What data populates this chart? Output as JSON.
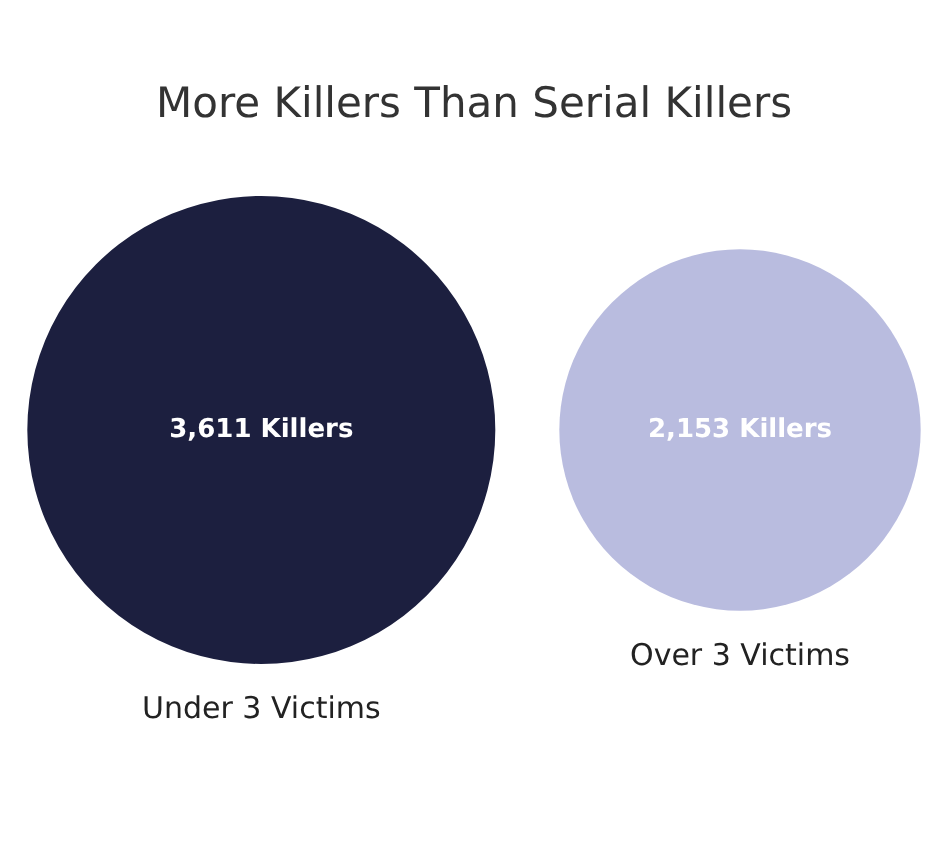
{
  "chart_data": {
    "type": "other",
    "title": "More Killers Than Serial Killers",
    "categories": [
      "Under 3 Victims",
      "Over 3 Victims"
    ],
    "values": [
      3611,
      2153
    ],
    "value_labels": [
      "3,611 Killers",
      "2,153 Killers"
    ],
    "colors": [
      "#1c1f3f",
      "#b9bcdf"
    ]
  }
}
